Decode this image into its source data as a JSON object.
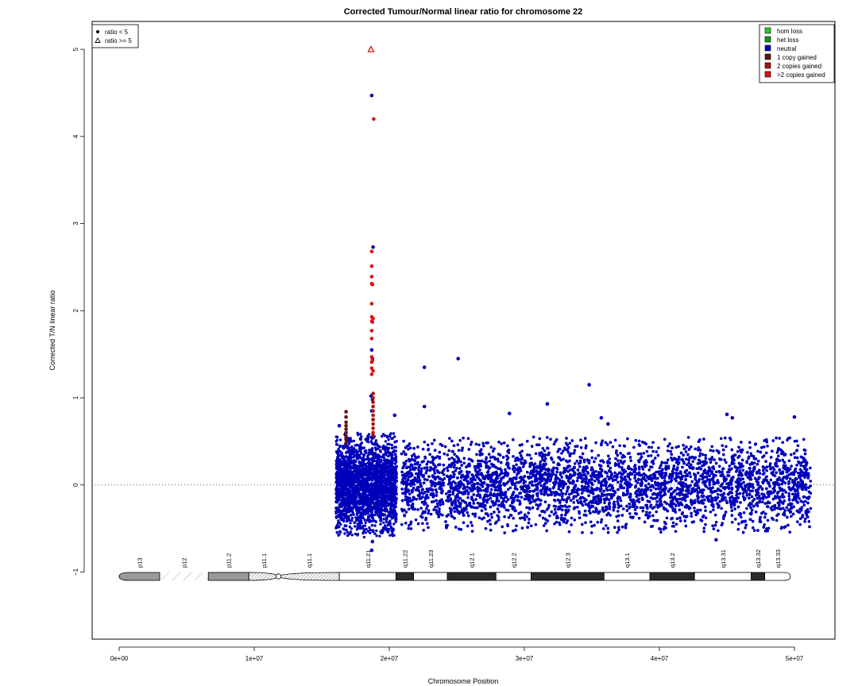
{
  "chart_data": {
    "type": "scatter",
    "title": "Corrected Tumour/Normal linear ratio for chromosome  22",
    "xlabel": "Chromosome Position",
    "ylabel": "Corrected T/N linear ratio",
    "xlim": [
      -2000000,
      53000000
    ],
    "ylim": [
      -1.77,
      5.32
    ],
    "x_ticks": [
      {
        "value": 0,
        "label": "0e+00"
      },
      {
        "value": 10000000,
        "label": "1e+07"
      },
      {
        "value": 20000000,
        "label": "2e+07"
      },
      {
        "value": 30000000,
        "label": "3e+07"
      },
      {
        "value": 40000000,
        "label": "4e+07"
      },
      {
        "value": 50000000,
        "label": "5e+07"
      }
    ],
    "y_ticks": [
      {
        "value": -1,
        "label": "−1"
      },
      {
        "value": 0,
        "label": "0"
      },
      {
        "value": 1,
        "label": "1"
      },
      {
        "value": 2,
        "label": "2"
      },
      {
        "value": 3,
        "label": "3"
      },
      {
        "value": 4,
        "label": "4"
      },
      {
        "value": 5,
        "label": "5"
      }
    ],
    "reference_line_y": 0,
    "grid": false,
    "shape_legend": {
      "placement": "top-left",
      "items": [
        {
          "symbol": "circle",
          "label": "ratio < 5"
        },
        {
          "symbol": "triangle",
          "label": "ratio >= 5"
        }
      ]
    },
    "color_legend": {
      "placement": "top-right",
      "items": [
        {
          "label": "hom loss",
          "color": "#22cc22"
        },
        {
          "label": "het loss",
          "color": "#119911"
        },
        {
          "label": "neutral",
          "color": "#0000bb"
        },
        {
          "label": "1 copy gained",
          "color": "#661111"
        },
        {
          "label": "2 copies gained",
          "color": "#aa1111"
        },
        {
          "label": ">2 copies gained",
          "color": "#dd1111"
        }
      ]
    },
    "cloud": {
      "series": "neutral",
      "color": "#0000bb",
      "segments": [
        {
          "x_start": 16050000,
          "x_end": 20550000,
          "y_low": -0.6,
          "y_high": 0.6,
          "count": 2400
        },
        {
          "x_start": 20900000,
          "x_end": 51200000,
          "y_low": -0.55,
          "y_high": 0.55,
          "count": 12000
        }
      ]
    },
    "series": [
      {
        "name": "neutral",
        "color": "#0000bb",
        "points": [
          [
            18700000,
            4.47
          ],
          [
            18800000,
            2.73
          ],
          [
            18700000,
            1.55
          ],
          [
            18750000,
            1.45
          ],
          [
            18650000,
            1.02
          ],
          [
            18750000,
            0.98
          ],
          [
            18700000,
            0.85
          ],
          [
            18800000,
            0.75
          ],
          [
            22600000,
            1.35
          ],
          [
            25100000,
            1.45
          ],
          [
            34800000,
            1.15
          ],
          [
            31700000,
            0.93
          ],
          [
            22600000,
            0.9
          ],
          [
            28900000,
            0.82
          ],
          [
            35700000,
            0.77
          ],
          [
            45000000,
            0.81
          ],
          [
            45400000,
            0.77
          ],
          [
            50000000,
            0.78
          ],
          [
            20400000,
            0.8
          ],
          [
            36200000,
            0.7
          ],
          [
            18700000,
            -0.75
          ],
          [
            18750000,
            -0.65
          ],
          [
            16300000,
            0.68
          ],
          [
            44200000,
            -0.63
          ]
        ]
      },
      {
        "name": "1 copy gained",
        "color": "#661111",
        "points": [
          [
            16800000,
            0.84
          ],
          [
            16800000,
            0.78
          ],
          [
            16800000,
            0.72
          ],
          [
            16800000,
            0.68
          ],
          [
            16800000,
            0.64
          ],
          [
            16800000,
            0.6
          ],
          [
            16800000,
            0.56
          ],
          [
            16800000,
            0.52
          ],
          [
            16800000,
            0.48
          ]
        ]
      },
      {
        "name": "2 copies gained",
        "color": "#aa1111",
        "points": [
          [
            18800000,
            1.05
          ],
          [
            18800000,
            1.0
          ],
          [
            18800000,
            0.95
          ],
          [
            18800000,
            0.9
          ],
          [
            18800000,
            0.85
          ],
          [
            18800000,
            0.8
          ],
          [
            18800000,
            0.75
          ],
          [
            18800000,
            0.7
          ],
          [
            18800000,
            0.65
          ],
          [
            18800000,
            0.6
          ],
          [
            18800000,
            0.57
          ]
        ]
      },
      {
        "name": ">2 copies gained",
        "color": "#dd1111",
        "points": [
          [
            18850000,
            4.2
          ],
          [
            18700000,
            2.68
          ],
          [
            18700000,
            2.51
          ],
          [
            18700000,
            2.39
          ],
          [
            18700000,
            2.31
          ],
          [
            18750000,
            2.3
          ],
          [
            18700000,
            2.08
          ],
          [
            18700000,
            1.93
          ],
          [
            18800000,
            1.91
          ],
          [
            18700000,
            1.88
          ],
          [
            18750000,
            1.87
          ],
          [
            18700000,
            1.77
          ],
          [
            18700000,
            1.68
          ],
          [
            18700000,
            1.47
          ],
          [
            18750000,
            1.43
          ],
          [
            18700000,
            1.41
          ],
          [
            18700000,
            1.34
          ],
          [
            18800000,
            1.31
          ],
          [
            18700000,
            1.27
          ]
        ],
        "triangle_points": [
          [
            18650000,
            5.0
          ]
        ]
      }
    ],
    "ideogram": {
      "y": -1.05,
      "bands": [
        {
          "name": "p13",
          "start": 0,
          "end": 3000000,
          "stain": "gvar"
        },
        {
          "name": "p12",
          "start": 3000000,
          "end": 6600000,
          "stain": "stalk"
        },
        {
          "name": "p11.2",
          "start": 6600000,
          "end": 9600000,
          "stain": "gvar"
        },
        {
          "name": "p11.1",
          "start": 9600000,
          "end": 11800000,
          "stain": "acen"
        },
        {
          "name": "q11.1",
          "start": 11800000,
          "end": 16300000,
          "stain": "acen"
        },
        {
          "name": "q11.21",
          "start": 16300000,
          "end": 20500000,
          "stain": "gneg"
        },
        {
          "name": "q11.22",
          "start": 20500000,
          "end": 21800000,
          "stain": "gpos"
        },
        {
          "name": "q11.23",
          "start": 21800000,
          "end": 24300000,
          "stain": "gneg"
        },
        {
          "name": "q12.1",
          "start": 24300000,
          "end": 27900000,
          "stain": "gpos"
        },
        {
          "name": "q12.2",
          "start": 27900000,
          "end": 30500000,
          "stain": "gneg"
        },
        {
          "name": "q12.3",
          "start": 30500000,
          "end": 35900000,
          "stain": "gpos"
        },
        {
          "name": "q13.1",
          "start": 35900000,
          "end": 39300000,
          "stain": "gneg"
        },
        {
          "name": "q13.2",
          "start": 39300000,
          "end": 42600000,
          "stain": "gpos"
        },
        {
          "name": "q13.31",
          "start": 42600000,
          "end": 46800000,
          "stain": "gneg"
        },
        {
          "name": "q13.32",
          "start": 46800000,
          "end": 47800000,
          "stain": "gpos"
        },
        {
          "name": "q13.33",
          "start": 47800000,
          "end": 49700000,
          "stain": "gneg"
        }
      ]
    }
  }
}
